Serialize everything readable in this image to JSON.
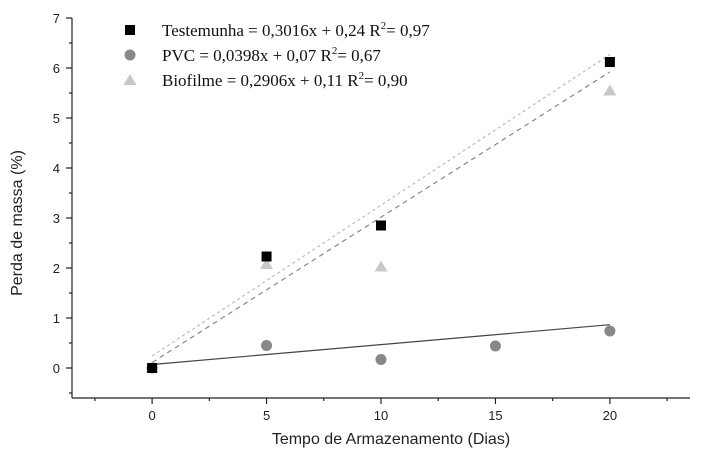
{
  "chart_data": {
    "type": "scatter",
    "xlabel": "Tempo de Armazenamento (Dias)",
    "ylabel": "Perda de massa (%)",
    "xlim": [
      -3.5,
      23.5
    ],
    "ylim": [
      -0.6,
      7.0
    ],
    "x_ticks": [
      0,
      5,
      10,
      15,
      20
    ],
    "y_ticks": [
      0,
      1,
      2,
      3,
      4,
      5,
      6,
      7
    ],
    "grid": false,
    "legend_position": "top-left",
    "series": [
      {
        "name": "Testemunha",
        "legend_label": "Testemunha = 0,3016x + 0,24 R",
        "legend_r2": "= 0,97",
        "marker": "square",
        "color": "#000000",
        "x": [
          0,
          5,
          10,
          20
        ],
        "y": [
          0.0,
          2.23,
          2.85,
          6.12
        ],
        "fit": {
          "slope": 0.3016,
          "intercept": 0.24,
          "color": "#bbbbbb",
          "dash": "3,3"
        }
      },
      {
        "name": "PVC",
        "legend_label": "PVC = 0,0398x + 0,07 R",
        "legend_r2": "= 0,67",
        "marker": "circle",
        "color": "#888888",
        "x": [
          0,
          5,
          10,
          15,
          20
        ],
        "y": [
          0.0,
          0.45,
          0.17,
          0.44,
          0.74
        ],
        "fit": {
          "slope": 0.0398,
          "intercept": 0.07,
          "color": "#444444",
          "dash": ""
        }
      },
      {
        "name": "Biofilme",
        "legend_label": "Biofilme = 0,2906x + 0,11 R",
        "legend_r2": "= 0,90",
        "marker": "triangle",
        "color": "#c8c8c8",
        "x": [
          0,
          5,
          10,
          20
        ],
        "y": [
          0.0,
          2.08,
          2.03,
          5.55
        ],
        "fit": {
          "slope": 0.2906,
          "intercept": 0.11,
          "color": "#888888",
          "dash": "5,4"
        }
      }
    ]
  }
}
